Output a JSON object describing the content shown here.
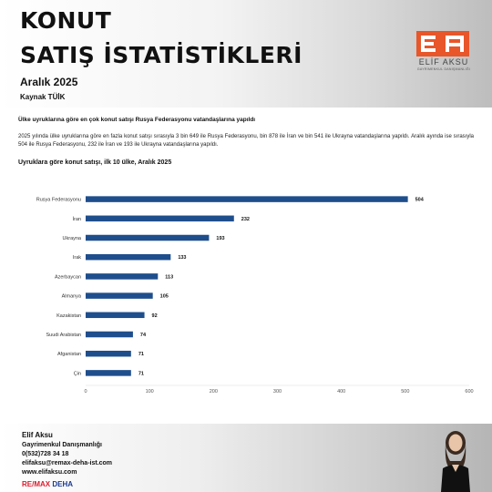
{
  "header": {
    "title_line1": "KONUT",
    "title_line2": "SATIŞ İSTATİSTİKLERİ",
    "period": "Aralık 2025",
    "source": "Kaynak TÜİK"
  },
  "logo": {
    "name": "ELİF AKSU",
    "subtitle": "GAYRİMENKUL DANIŞMANLIĞI",
    "color": "#e8562a"
  },
  "headline": "Ülke uyruklarına göre en çok konut satışı  Rusya Federasyonu vatandaşlarına yapıldı",
  "paragraph": "2025 yılında ülke uyruklarına göre en fazla konut satışı sırasıyla 3 bin 649 ile Rusya Federasyonu, bin 878 ile İran ve bin 541 ile Ukrayna vatandaşlarına yapıldı.  Aralık ayında ise sırasıyla 504 ile Rusya Federasyonu, 232 ile İran ve 193 ile Ukrayna  vatandaşlarına yapıldı.",
  "chart_title": "Uyruklara göre konut satışı, ilk 10 ülke, Aralık 2025",
  "chart_data": {
    "type": "bar",
    "orientation": "horizontal",
    "categories": [
      "Rusya Federasyonu",
      "İran",
      "Ukrayna",
      "Irak",
      "Azerbaycan",
      "Almanya",
      "Kazakistan",
      "Suudi Arabistan",
      "Afganistan",
      "Çin"
    ],
    "values": [
      504,
      232,
      193,
      133,
      113,
      105,
      92,
      74,
      71,
      71
    ],
    "xlim": [
      0,
      600
    ],
    "xticks": [
      0,
      100,
      200,
      300,
      400,
      500,
      600
    ],
    "bar_color": "#1f4e8c",
    "grid": false,
    "legend": "none"
  },
  "footer": {
    "name": "Elif Aksu",
    "role": "Gayrimenkul Danışmanlığı",
    "phone": "0(532)728 34 18",
    "email": "elifaksu@remax-deha-ist.com",
    "website": "www.elifaksu.com",
    "brand_re": "RE/",
    "brand_max": "MAX",
    "brand_deha": " DEHA"
  }
}
